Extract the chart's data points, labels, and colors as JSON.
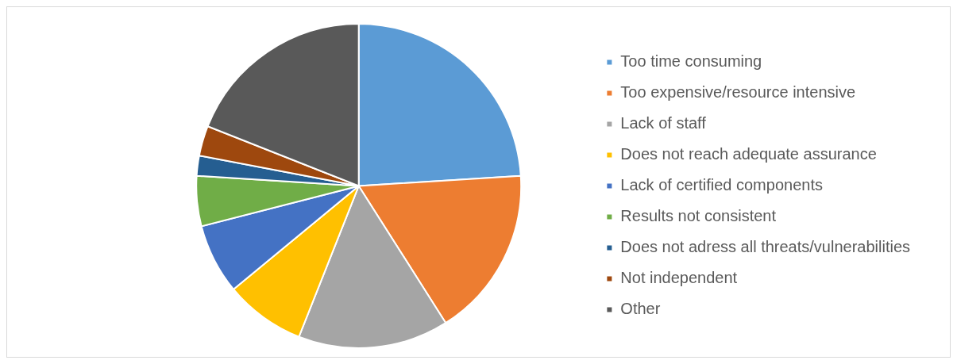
{
  "chart_data": {
    "type": "pie",
    "categories": [
      "Too time consuming",
      "Too expensive/resource intensive",
      "Lack of staff",
      "Does not reach adequate assurance",
      "Lack of certified components",
      "Results not consistent",
      "Does not adress all threats/vulnerabilities",
      "Not independent",
      "Other"
    ],
    "values": [
      24,
      17,
      15,
      8,
      7,
      5,
      2,
      3,
      19
    ],
    "colors": [
      "#5b9bd5",
      "#ed7d31",
      "#a5a5a5",
      "#ffc000",
      "#4472c4",
      "#70ad47",
      "#255e91",
      "#9e480e",
      "#595959"
    ],
    "legend": "right"
  }
}
